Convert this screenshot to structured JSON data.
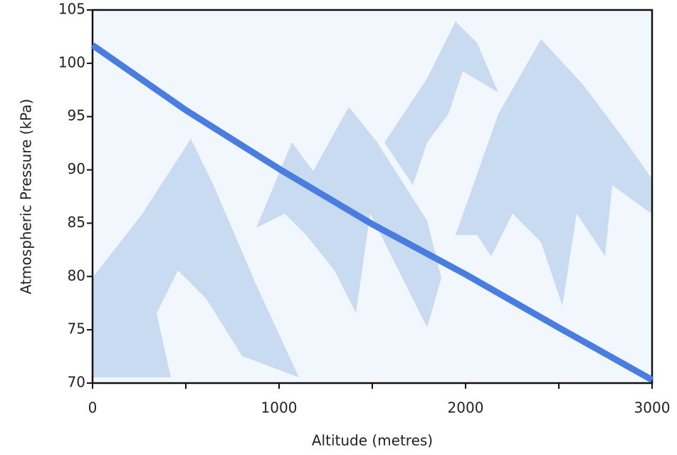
{
  "chart_data": {
    "type": "line",
    "x_label": "Altitude (metres)",
    "y_label": "Atmospheric Pressure (kPa)",
    "x": [
      0,
      500,
      1000,
      1500,
      2000,
      2500,
      3000
    ],
    "series": [
      {
        "color": "#4a7de0",
        "values": [
          101.7,
          95.6,
          90.1,
          84.9,
          80.2,
          75.2,
          70.3
        ]
      }
    ],
    "xlim": [
      0,
      3000
    ],
    "xticks": [
      0,
      1000,
      2000,
      3000
    ],
    "xminorticks": [
      500,
      1500,
      2500
    ],
    "ylim": [
      70,
      105
    ],
    "yticks": [
      70,
      75,
      80,
      85,
      90,
      95,
      100,
      105
    ]
  }
}
